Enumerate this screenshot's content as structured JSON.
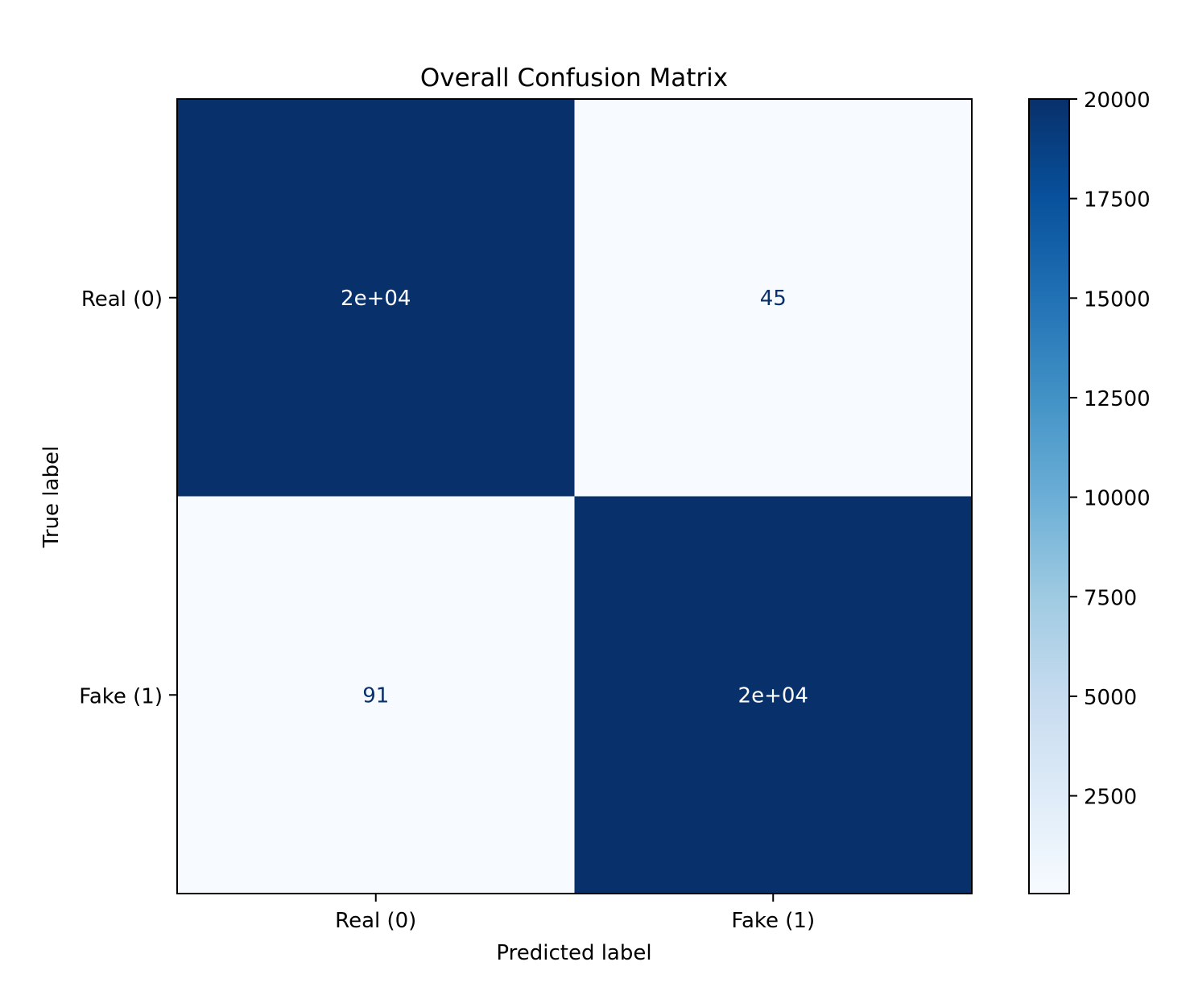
{
  "chart_data": {
    "type": "heatmap",
    "title": "Overall Confusion Matrix",
    "xlabel": "Predicted label",
    "ylabel": "True label",
    "x_categories": [
      "Real (0)",
      "Fake (1)"
    ],
    "y_categories": [
      "Real (0)",
      "Fake (1)"
    ],
    "values": [
      [
        20000,
        45
      ],
      [
        91,
        20000
      ]
    ],
    "cell_labels": [
      [
        "2e+04",
        "45"
      ],
      [
        "91",
        "2e+04"
      ]
    ],
    "colormap": "Blues",
    "colorbar": {
      "range": [
        45,
        20000
      ],
      "ticks": [
        2500,
        5000,
        7500,
        10000,
        12500,
        15000,
        17500,
        20000
      ],
      "tick_labels": [
        "2500",
        "5000",
        "7500",
        "10000",
        "12500",
        "15000",
        "17500",
        "20000"
      ]
    },
    "grid": false,
    "colors": {
      "high": "#08306b",
      "low": "#f7fbff",
      "text_on_dark": "#ffffff",
      "text_on_light": "#08306b"
    }
  }
}
